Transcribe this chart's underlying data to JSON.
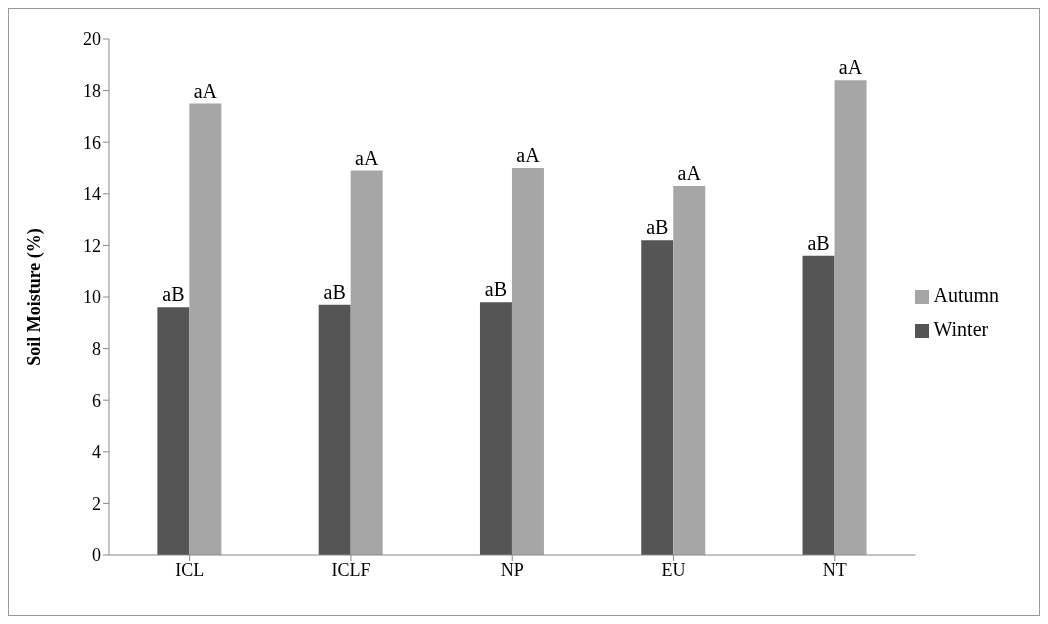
{
  "chart_data": {
    "type": "bar",
    "ylabel": "Soil Moisture (%)",
    "categories": [
      "ICL",
      "ICLF",
      "NP",
      "EU",
      "NT"
    ],
    "series": [
      {
        "name": "Winter",
        "color": "#555555",
        "values": [
          9.6,
          9.7,
          9.8,
          12.2,
          11.6
        ]
      },
      {
        "name": "Autumn",
        "color": "#a6a6a6",
        "values": [
          17.5,
          14.9,
          15.0,
          14.3,
          18.4
        ]
      }
    ],
    "ylim": [
      0,
      20
    ],
    "yticks": [
      0,
      2,
      4,
      6,
      8,
      10,
      12,
      14,
      16,
      18,
      20
    ],
    "grid": false,
    "legend": "right",
    "annotations": [
      {
        "text": "aB",
        "x": "ICL",
        "y": 9.6
      },
      {
        "text": "aA",
        "x": "ICL",
        "y": 17.5
      },
      {
        "text": "aB",
        "x": "ICLF",
        "y": 9.7
      },
      {
        "text": "aA",
        "x": "ICLF",
        "y": 14.9
      },
      {
        "text": "aB",
        "x": "NP",
        "y": 9.8
      },
      {
        "text": "aA",
        "x": "NP",
        "y": 15.0
      },
      {
        "text": "aB",
        "x": "EU",
        "y": 12.2
      },
      {
        "text": "aA",
        "x": "EU",
        "y": 14.3
      },
      {
        "text": "aB",
        "x": "NT",
        "y": 11.6
      },
      {
        "text": "aA",
        "x": "NT",
        "y": 18.4
      }
    ]
  }
}
